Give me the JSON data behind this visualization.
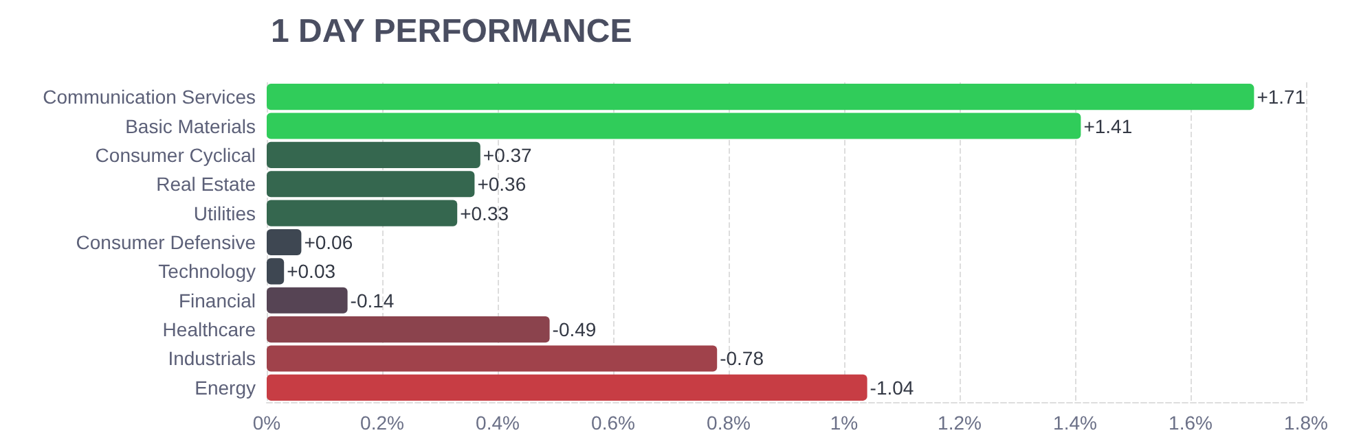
{
  "chart_data": {
    "type": "bar",
    "orientation": "horizontal",
    "title": "1 DAY PERFORMANCE",
    "categories": [
      "Communication Services",
      "Basic Materials",
      "Consumer Cyclical",
      "Real Estate",
      "Utilities",
      "Consumer Defensive",
      "Technology",
      "Financial",
      "Healthcare",
      "Industrials",
      "Energy"
    ],
    "values": [
      1.71,
      1.41,
      0.37,
      0.36,
      0.33,
      0.06,
      0.03,
      -0.14,
      -0.49,
      -0.78,
      -1.04
    ],
    "base": [
      0,
      0,
      0,
      0,
      0,
      0,
      0,
      0.14,
      0.49,
      0.78,
      1.04
    ],
    "value_labels": [
      "+1.71",
      "+1.41",
      "+0.37",
      "+0.36",
      "+0.33",
      "+0.06",
      "+0.03",
      "-0.14",
      "-0.49",
      "-0.78",
      "-1.04"
    ],
    "colors": [
      "#30cc5a",
      "#30cc5a",
      "#35674f",
      "#35674f",
      "#35674f",
      "#3e4752",
      "#3e4752",
      "#564454",
      "#8b434d",
      "#a0424b",
      "#c73d44"
    ],
    "xlim": [
      0,
      1.8
    ],
    "xticks": [
      {
        "value": 0,
        "label": "0%"
      },
      {
        "value": 0.2,
        "label": "0.2%"
      },
      {
        "value": 0.4,
        "label": "0.4%"
      },
      {
        "value": 0.6,
        "label": "0.6%"
      },
      {
        "value": 0.8,
        "label": "0.8%"
      },
      {
        "value": 1,
        "label": "1%"
      },
      {
        "value": 1.2,
        "label": "1.2%"
      },
      {
        "value": 1.4,
        "label": "1.4%"
      },
      {
        "value": 1.6,
        "label": "1.6%"
      },
      {
        "value": 1.8,
        "label": "1.8%"
      }
    ],
    "grid": "x"
  }
}
